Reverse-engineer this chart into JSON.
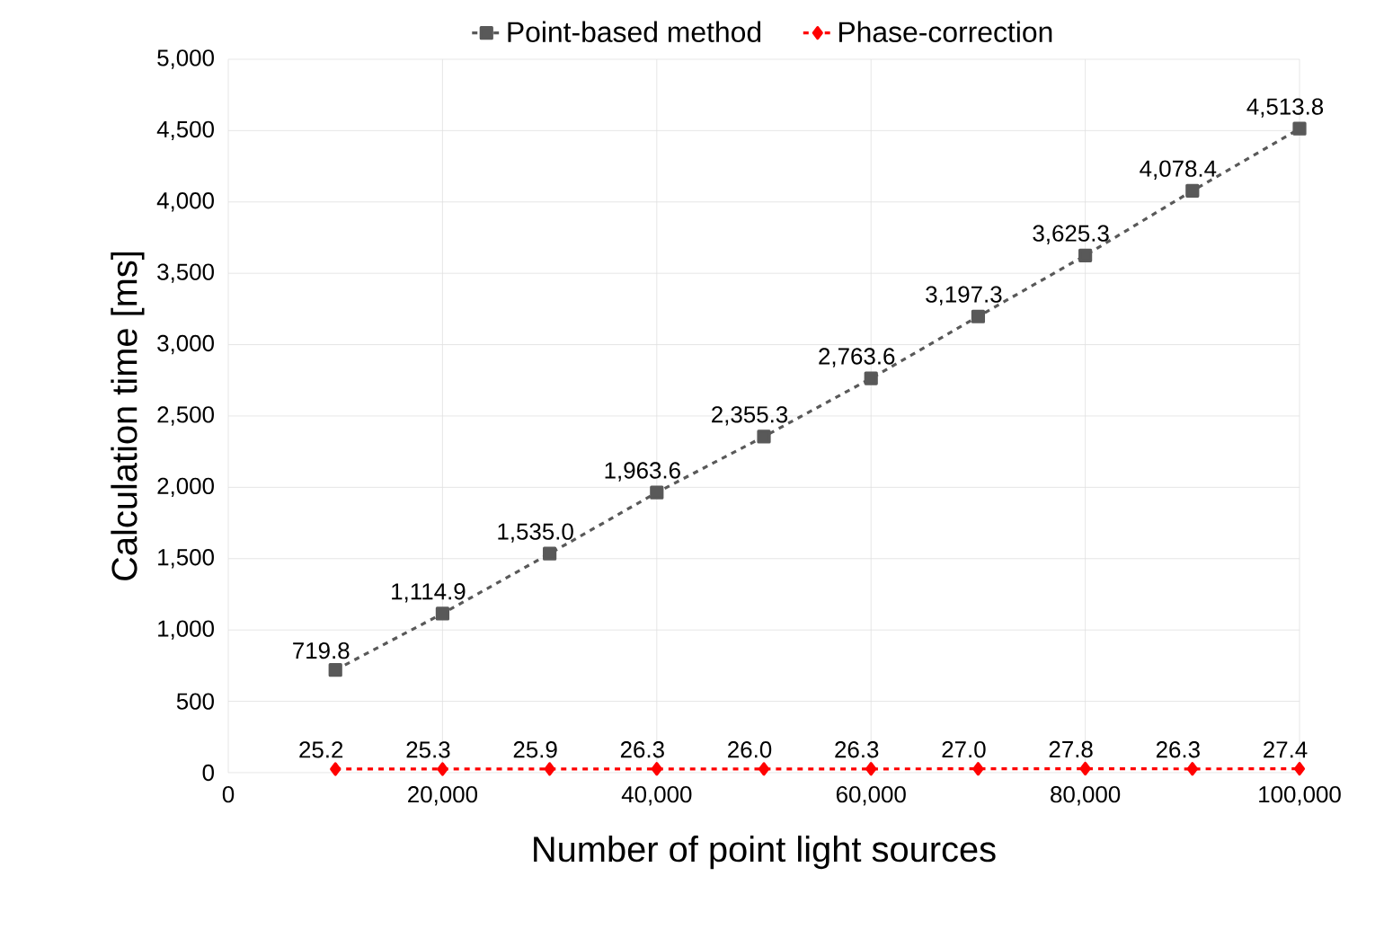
{
  "chart_data": {
    "type": "line",
    "xlabel": "Number of point light sources",
    "ylabel": "Calculation time [ms]",
    "x": [
      10000,
      20000,
      30000,
      40000,
      50000,
      60000,
      70000,
      80000,
      90000,
      100000
    ],
    "series": [
      {
        "name": "Point-based method",
        "color": "#595959",
        "marker": "square",
        "line_style": "dashed",
        "values": [
          719.8,
          1114.9,
          1535.0,
          1963.6,
          2355.3,
          2763.6,
          3197.3,
          3625.3,
          4078.4,
          4513.8
        ],
        "value_labels": [
          "719.8",
          "1,114.9",
          "1,535.0",
          "1,963.6",
          "2,355.3",
          "2,763.6",
          "3,197.3",
          "3,625.3",
          "4,078.4",
          "4,513.8"
        ]
      },
      {
        "name": "Phase-correction",
        "color": "#ff0000",
        "marker": "diamond",
        "line_style": "dashed",
        "values": [
          25.2,
          25.3,
          25.9,
          26.3,
          26.0,
          26.3,
          27.0,
          27.8,
          26.3,
          27.4
        ],
        "value_labels": [
          "25.2",
          "25.3",
          "25.9",
          "26.3",
          "26.0",
          "26.3",
          "27.0",
          "27.8",
          "26.3",
          "27.4"
        ]
      }
    ],
    "xlim": [
      0,
      100000
    ],
    "xticks": [
      0,
      {
        "value": 20000,
        "label": "20,000"
      },
      {
        "value": 40000,
        "label": "40,000"
      },
      {
        "value": 60000,
        "label": "60,000"
      },
      {
        "value": 80000,
        "label": "80,000"
      },
      {
        "value": 100000,
        "label": "100,000"
      }
    ],
    "ylim": [
      0,
      5000
    ],
    "yticks": [
      0,
      500,
      {
        "value": 1000,
        "label": "1,000"
      },
      {
        "value": 1500,
        "label": "1,500"
      },
      {
        "value": 2000,
        "label": "2,000"
      },
      {
        "value": 2500,
        "label": "2,500"
      },
      {
        "value": 3000,
        "label": "3,000"
      },
      {
        "value": 3500,
        "label": "3,500"
      },
      {
        "value": 4000,
        "label": "4,000"
      },
      {
        "value": 4500,
        "label": "4,500"
      },
      {
        "value": 5000,
        "label": "5,000"
      }
    ],
    "grid": true,
    "legend": "top"
  }
}
